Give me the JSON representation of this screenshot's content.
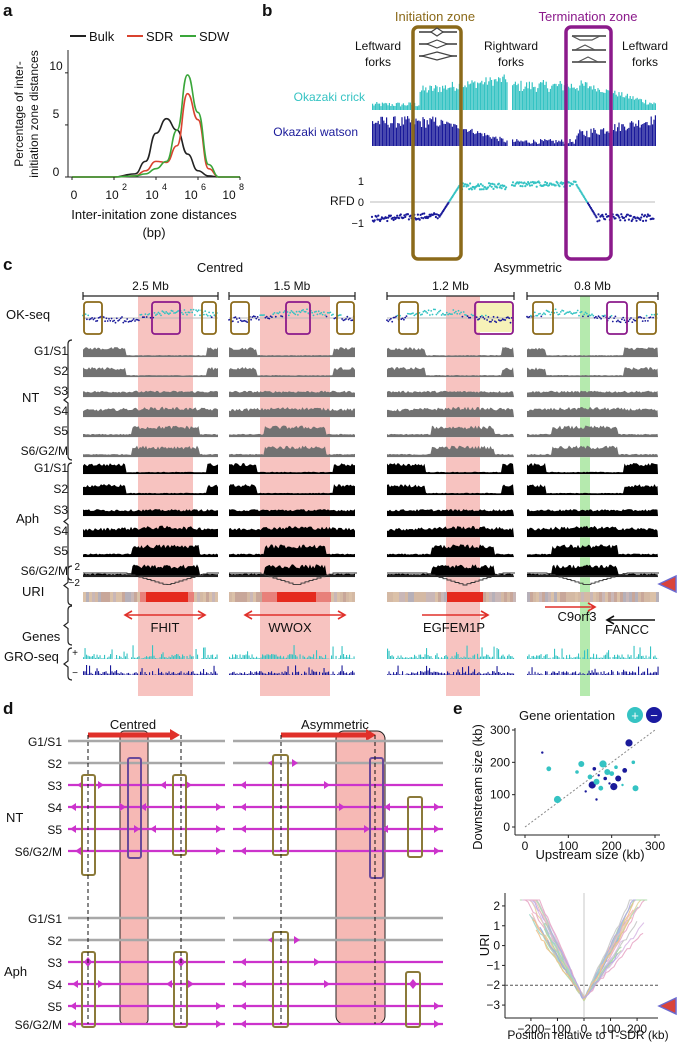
{
  "colors": {
    "bulk": "#222222",
    "sdr": "#d9432f",
    "sdw": "#3aa63a",
    "initiation": "#8b6a1a",
    "termination": "#8b1a8b",
    "crick": "#35c3c3",
    "watson": "#1a1a9a",
    "nt": "#6e6e6e",
    "aph": "#000000",
    "sdr_band": "#f6b9b5",
    "green_band": "#a8e6a0",
    "arrow": "#e0302a",
    "fork": "#cc33cc",
    "gray_line": "#a8a8a8"
  },
  "panel_a": {
    "letter": "a",
    "legend": [
      "Bulk",
      "SDR",
      "SDW"
    ],
    "ylabel_line1": "Percentage of inter-",
    "ylabel_line2": "initiation zone distances",
    "yticks": [
      "0",
      "5",
      "10"
    ],
    "xticks": [
      "0",
      "10",
      "2",
      "10",
      "4",
      "10",
      "6",
      "10",
      "8"
    ],
    "xlabel_line1": "Inter-initation zone distances",
    "xlabel_line2": "(bp)"
  },
  "chart_data": {
    "type": "line",
    "title": "",
    "xlabel": "Inter-initation zone distances (bp)",
    "ylabel": "Percentage of inter-initiation zone distances",
    "x_log10": [
      0,
      1,
      2,
      3,
      3.5,
      4,
      4.5,
      5,
      5.5,
      6,
      6.5,
      7,
      8
    ],
    "xlim_log10": [
      0,
      8
    ],
    "ylim": [
      0,
      12
    ],
    "series": [
      {
        "name": "Bulk",
        "values": [
          0,
          0,
          0,
          0.3,
          1.5,
          4.2,
          5.6,
          4.5,
          2.2,
          0.6,
          0.1,
          0,
          0
        ]
      },
      {
        "name": "SDR",
        "values": [
          0,
          0,
          0,
          0.1,
          0.6,
          1.5,
          1.4,
          3.0,
          8.0,
          5.5,
          0.8,
          0,
          0
        ]
      },
      {
        "name": "SDW",
        "values": [
          0,
          0,
          0,
          0.1,
          0.3,
          0.8,
          1.5,
          4.5,
          9.8,
          6.2,
          1.2,
          0,
          0
        ]
      }
    ]
  },
  "panel_b": {
    "letter": "b",
    "initiation_title": "Initiation zone",
    "termination_title": "Termination zone",
    "leftward_1": [
      "Leftward",
      "forks"
    ],
    "rightward": [
      "Rightward",
      "forks"
    ],
    "leftward_2": [
      "Leftward",
      "forks"
    ],
    "crick_label": "Okazaki crick",
    "watson_label": "Okazaki watson",
    "rfd_label": "RFD",
    "rfd_ticks": [
      "1",
      "0",
      "−1"
    ]
  },
  "panel_c": {
    "letter": "c",
    "group_centred": "Centred",
    "group_asym": "Asymmetric",
    "scales": [
      "2.5 Mb",
      "1.5 Mb",
      "1.2 Mb",
      "0.8 Mb"
    ],
    "okseq_label": "OK-seq",
    "nt_rows": [
      "G1/S1",
      "S2",
      "S3",
      "S4",
      "S5",
      "S6/G2/M"
    ],
    "aph_rows": [
      "G1/S1",
      "S2",
      "S3",
      "S4",
      "S5",
      "S6/G2/M"
    ],
    "nt_label": "NT",
    "aph_label": "Aph",
    "uri_label": "URI",
    "uri_ticks": [
      "2",
      "−2"
    ],
    "genes_label": "Genes",
    "gro_label": "GRO-seq",
    "gro_ticks": [
      "+",
      "−"
    ],
    "genes": [
      "FHIT",
      "WWOX",
      "EGFEM1P",
      "C9orf3",
      "FANCC"
    ]
  },
  "panel_d": {
    "letter": "d",
    "centred": "Centred",
    "asymmetric": "Asymmetric",
    "nt_label": "NT",
    "aph_label": "Aph",
    "rows": [
      "G1/S1",
      "S2",
      "S3",
      "S4",
      "S5",
      "S6/G2/M"
    ]
  },
  "panel_e": {
    "letter": "e",
    "legend_title": "Gene orientation",
    "legend_plus": "+",
    "legend_minus": "−",
    "scatter_xlabel": "Upstream size (kb)",
    "scatter_ylabel": "Downstream size (kb)",
    "scatter_xticks": [
      "0",
      "100",
      "200",
      "300"
    ],
    "scatter_yticks": [
      "0",
      "100",
      "200",
      "300"
    ],
    "scatter_points": [
      {
        "x": 40,
        "y": 230,
        "o": "-"
      },
      {
        "x": 55,
        "y": 180,
        "o": "+"
      },
      {
        "x": 75,
        "y": 85,
        "o": "+"
      },
      {
        "x": 120,
        "y": 170,
        "o": "+"
      },
      {
        "x": 130,
        "y": 195,
        "o": "+"
      },
      {
        "x": 140,
        "y": 110,
        "o": "-"
      },
      {
        "x": 150,
        "y": 155,
        "o": "+"
      },
      {
        "x": 155,
        "y": 130,
        "o": "-"
      },
      {
        "x": 160,
        "y": 180,
        "o": "-"
      },
      {
        "x": 165,
        "y": 140,
        "o": "+"
      },
      {
        "x": 170,
        "y": 160,
        "o": "-"
      },
      {
        "x": 175,
        "y": 120,
        "o": "+"
      },
      {
        "x": 180,
        "y": 195,
        "o": "+"
      },
      {
        "x": 185,
        "y": 150,
        "o": "-"
      },
      {
        "x": 190,
        "y": 170,
        "o": "+"
      },
      {
        "x": 195,
        "y": 135,
        "o": "-"
      },
      {
        "x": 200,
        "y": 165,
        "o": "+"
      },
      {
        "x": 205,
        "y": 125,
        "o": "-"
      },
      {
        "x": 210,
        "y": 185,
        "o": "+"
      },
      {
        "x": 215,
        "y": 150,
        "o": "-"
      },
      {
        "x": 225,
        "y": 130,
        "o": "+"
      },
      {
        "x": 230,
        "y": 175,
        "o": "-"
      },
      {
        "x": 240,
        "y": 260,
        "o": "-"
      },
      {
        "x": 250,
        "y": 200,
        "o": "+"
      },
      {
        "x": 255,
        "y": 120,
        "o": "+"
      },
      {
        "x": 165,
        "y": 85,
        "o": "-"
      }
    ],
    "uri_ylabel": "URI",
    "uri_yticks": [
      "2",
      "1",
      "0",
      "−1",
      "−2",
      "−3"
    ],
    "uri_xticks": [
      "−200",
      "−100",
      "0",
      "100",
      "200"
    ],
    "uri_xlabel": "Position relative to T-SDR (kb)"
  }
}
